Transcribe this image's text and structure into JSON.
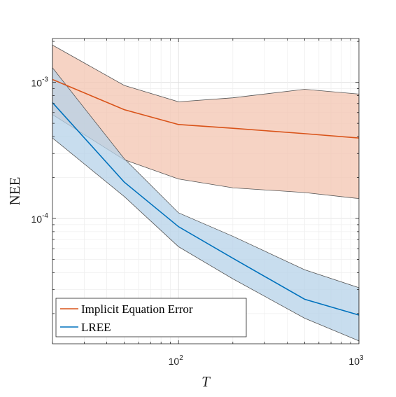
{
  "chart_data": {
    "type": "line",
    "title": "",
    "xlabel": "T",
    "ylabel": "NEE",
    "xscale": "log",
    "yscale": "log",
    "xlim": [
      20,
      1000
    ],
    "ylim": [
      1.2e-05,
      0.0021
    ],
    "grid": true,
    "legend_position": "bottom-left",
    "x_ticks": [
      {
        "value": 100,
        "base": "10",
        "exp": "2"
      },
      {
        "value": 1000,
        "base": "10",
        "exp": "3"
      }
    ],
    "y_ticks": [
      {
        "value": 0.0001,
        "base": "10",
        "exp": "-4"
      },
      {
        "value": 0.001,
        "base": "10",
        "exp": "-3"
      }
    ],
    "series": [
      {
        "name": "Implicit Equation Error",
        "color": "#D95319",
        "fill": "#F3C4B0",
        "x": [
          20,
          50,
          100,
          200,
          500,
          1000
        ],
        "values": [
          0.00105,
          0.00063,
          0.00049,
          0.00046,
          0.00042,
          0.00039
        ],
        "upper": [
          0.00188,
          0.00095,
          0.00072,
          0.00077,
          0.00089,
          0.00082
        ],
        "lower": [
          0.00058,
          0.00027,
          0.000195,
          0.000168,
          0.000155,
          0.00014
        ]
      },
      {
        "name": "LREE",
        "color": "#0072BD",
        "fill": "#B5D2E8",
        "x": [
          20,
          50,
          100,
          200,
          500,
          1000
        ],
        "values": [
          0.00071,
          0.000185,
          8.7e-05,
          5.1e-05,
          2.55e-05,
          1.95e-05
        ],
        "upper": [
          0.00128,
          0.000275,
          0.00011,
          7.4e-05,
          4.2e-05,
          3.1e-05
        ],
        "lower": [
          0.00039,
          0.000145,
          6.2e-05,
          3.6e-05,
          1.85e-05,
          1.26e-05
        ]
      }
    ]
  }
}
